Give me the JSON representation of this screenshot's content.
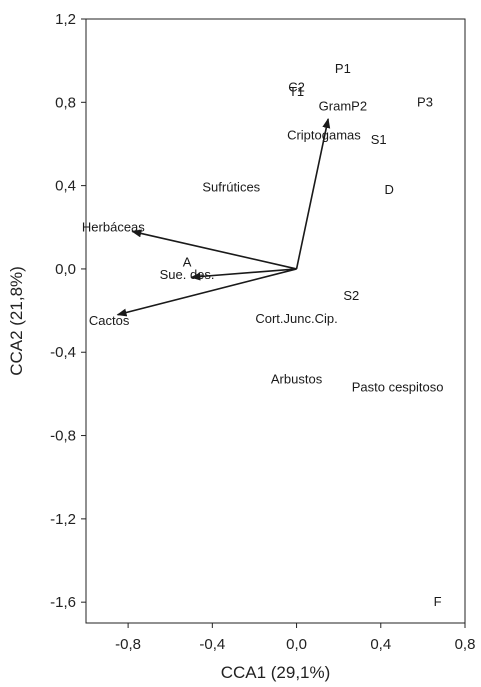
{
  "chart_data": {
    "type": "scatter",
    "title": "",
    "xlabel": "CCA1 (29,1%)",
    "ylabel": "CCA2 (21,8%)",
    "xlim": [
      -1.0,
      0.8
    ],
    "ylim": [
      -1.7,
      1.2
    ],
    "x_ticks": [
      -0.8,
      -0.4,
      0.0,
      0.4,
      0.8
    ],
    "x_tick_labels": [
      "-0,8",
      "-0,4",
      "0,0",
      "0,4",
      "0,8"
    ],
    "y_ticks": [
      1.2,
      0.8,
      0.4,
      0.0,
      -0.4,
      -0.8,
      -1.2,
      -1.6
    ],
    "y_tick_labels": [
      "1,2",
      "0,8",
      "0,4",
      "0,0",
      "-0,4",
      "-0,8",
      "-1,2",
      "-1,6"
    ],
    "grid": false,
    "arrows": [
      {
        "label": "Criptogamas",
        "x": 0.15,
        "y": 0.72
      },
      {
        "label": "Herbáceas",
        "x": -0.78,
        "y": 0.18
      },
      {
        "label": "Sue. des.",
        "x": -0.5,
        "y": -0.04
      },
      {
        "label": "Cactos",
        "x": -0.85,
        "y": -0.22
      }
    ],
    "labels": [
      {
        "text": "P1",
        "x": 0.22,
        "y": 0.96
      },
      {
        "text": "C2",
        "x": 0.0,
        "y": 0.87
      },
      {
        "text": "T1",
        "x": 0.0,
        "y": 0.85
      },
      {
        "text": "GramP2",
        "x": 0.22,
        "y": 0.78
      },
      {
        "text": "P3",
        "x": 0.61,
        "y": 0.8
      },
      {
        "text": "Criptogamas",
        "x": 0.13,
        "y": 0.64
      },
      {
        "text": "S1",
        "x": 0.39,
        "y": 0.62
      },
      {
        "text": "Sufrútices",
        "x": -0.31,
        "y": 0.39
      },
      {
        "text": "D",
        "x": 0.44,
        "y": 0.38
      },
      {
        "text": "Herbáceas",
        "x": -0.87,
        "y": 0.2
      },
      {
        "text": "A",
        "x": -0.52,
        "y": 0.03
      },
      {
        "text": "Sue. des.",
        "x": -0.52,
        "y": -0.03
      },
      {
        "text": "S2",
        "x": 0.26,
        "y": -0.13
      },
      {
        "text": "Cactos",
        "x": -0.89,
        "y": -0.25
      },
      {
        "text": "Cort.Junc.Cip.",
        "x": 0.0,
        "y": -0.24
      },
      {
        "text": "Arbustos",
        "x": 0.0,
        "y": -0.53
      },
      {
        "text": "Pasto cespitoso",
        "x": 0.48,
        "y": -0.57
      },
      {
        "text": "F",
        "x": 0.67,
        "y": -1.6
      }
    ]
  }
}
